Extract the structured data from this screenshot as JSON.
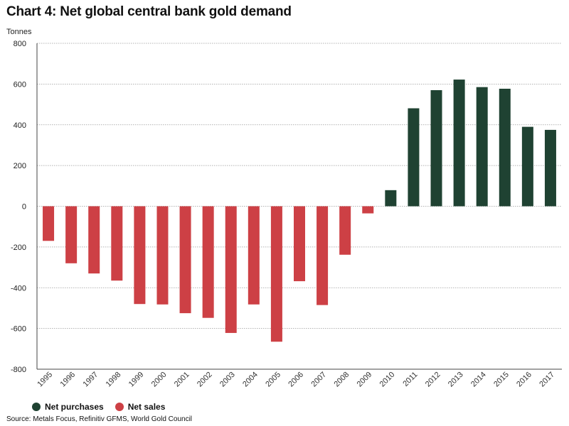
{
  "header": {
    "title": "Chart 4: Net global central bank gold demand",
    "unit_label": "Tonnes"
  },
  "legend": {
    "items": [
      {
        "label": "Net purchases",
        "color": "#1f4232"
      },
      {
        "label": "Net sales",
        "color": "#cd4045"
      }
    ]
  },
  "footer": {
    "source": "Source: Metals Focus, Refinitiv GFMS, World Gold Council"
  },
  "chart_data": {
    "type": "bar",
    "title": "Chart 4: Net global central bank gold demand",
    "ylabel": "Tonnes",
    "xlabel": "",
    "ylim": [
      -800,
      800
    ],
    "yticks": [
      800,
      600,
      400,
      200,
      0,
      -200,
      -400,
      -600,
      -800
    ],
    "grid": true,
    "legend_position": "bottom-left",
    "categories": [
      "1995",
      "1996",
      "1997",
      "1998",
      "1999",
      "2000",
      "2001",
      "2002",
      "2003",
      "2004",
      "2005",
      "2006",
      "2007",
      "2008",
      "2009",
      "2010",
      "2011",
      "2012",
      "2013",
      "2014",
      "2015",
      "2016",
      "2017"
    ],
    "values": [
      -170,
      -280,
      -330,
      -365,
      -480,
      -482,
      -525,
      -548,
      -622,
      -482,
      -665,
      -368,
      -485,
      -238,
      -35,
      79,
      481,
      570,
      622,
      585,
      577,
      390,
      375
    ],
    "colors": {
      "positive": "#1f4232",
      "negative": "#cd4045"
    }
  }
}
